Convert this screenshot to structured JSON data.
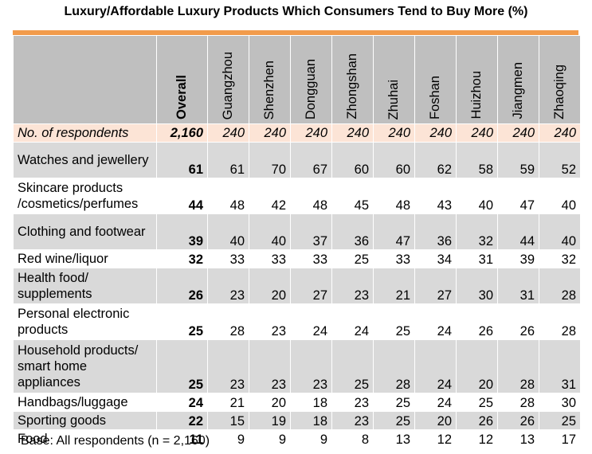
{
  "chart_data": {
    "type": "table",
    "title": "Luxury/Affordable Luxury Products Which Consumers Tend to Buy More (%)",
    "columns": [
      "Overall",
      "Guangzhou",
      "Shenzhen",
      "Dongguan",
      "Zhongshan",
      "Zhuhai",
      "Foshan",
      "Huizhou",
      "Jiangmen",
      "Zhaoqing"
    ],
    "respondents": {
      "label": "No. of respondents",
      "values": [
        "2,160",
        "240",
        "240",
        "240",
        "240",
        "240",
        "240",
        "240",
        "240",
        "240"
      ]
    },
    "rows": [
      {
        "label": "Watches and jewellery",
        "values": [
          61,
          61,
          70,
          67,
          60,
          60,
          62,
          58,
          59,
          52
        ]
      },
      {
        "label": "Skincare products /cosmetics/perfumes",
        "values": [
          44,
          48,
          42,
          48,
          45,
          48,
          43,
          40,
          47,
          40
        ]
      },
      {
        "label": "Clothing and footwear",
        "values": [
          39,
          40,
          40,
          37,
          36,
          47,
          36,
          32,
          44,
          40
        ]
      },
      {
        "label": "Red wine/liquor",
        "values": [
          32,
          33,
          33,
          33,
          25,
          33,
          34,
          31,
          39,
          32
        ]
      },
      {
        "label": "Health food/ supplements",
        "values": [
          26,
          23,
          20,
          27,
          23,
          21,
          27,
          30,
          31,
          28
        ]
      },
      {
        "label": "Personal electronic products",
        "values": [
          25,
          28,
          23,
          24,
          24,
          25,
          24,
          26,
          26,
          28
        ]
      },
      {
        "label": "Household products/ smart home appliances",
        "values": [
          25,
          23,
          23,
          23,
          25,
          28,
          24,
          20,
          28,
          31
        ]
      },
      {
        "label": "Handbags/luggage",
        "values": [
          24,
          21,
          20,
          18,
          23,
          25,
          24,
          25,
          28,
          30
        ]
      },
      {
        "label": "Sporting goods",
        "values": [
          22,
          15,
          19,
          18,
          23,
          25,
          20,
          26,
          26,
          25
        ]
      },
      {
        "label": "Food",
        "values": [
          11,
          9,
          9,
          9,
          8,
          13,
          12,
          12,
          13,
          17
        ]
      }
    ],
    "note": "Base: All respondents (n = 2,160)"
  },
  "colors": {
    "accent_bar": "#f29b4b",
    "header_bg": "#bfbfbf",
    "respondent_row_bg": "#fce4d6",
    "shaded_row_bg": "#d9d9d9"
  }
}
